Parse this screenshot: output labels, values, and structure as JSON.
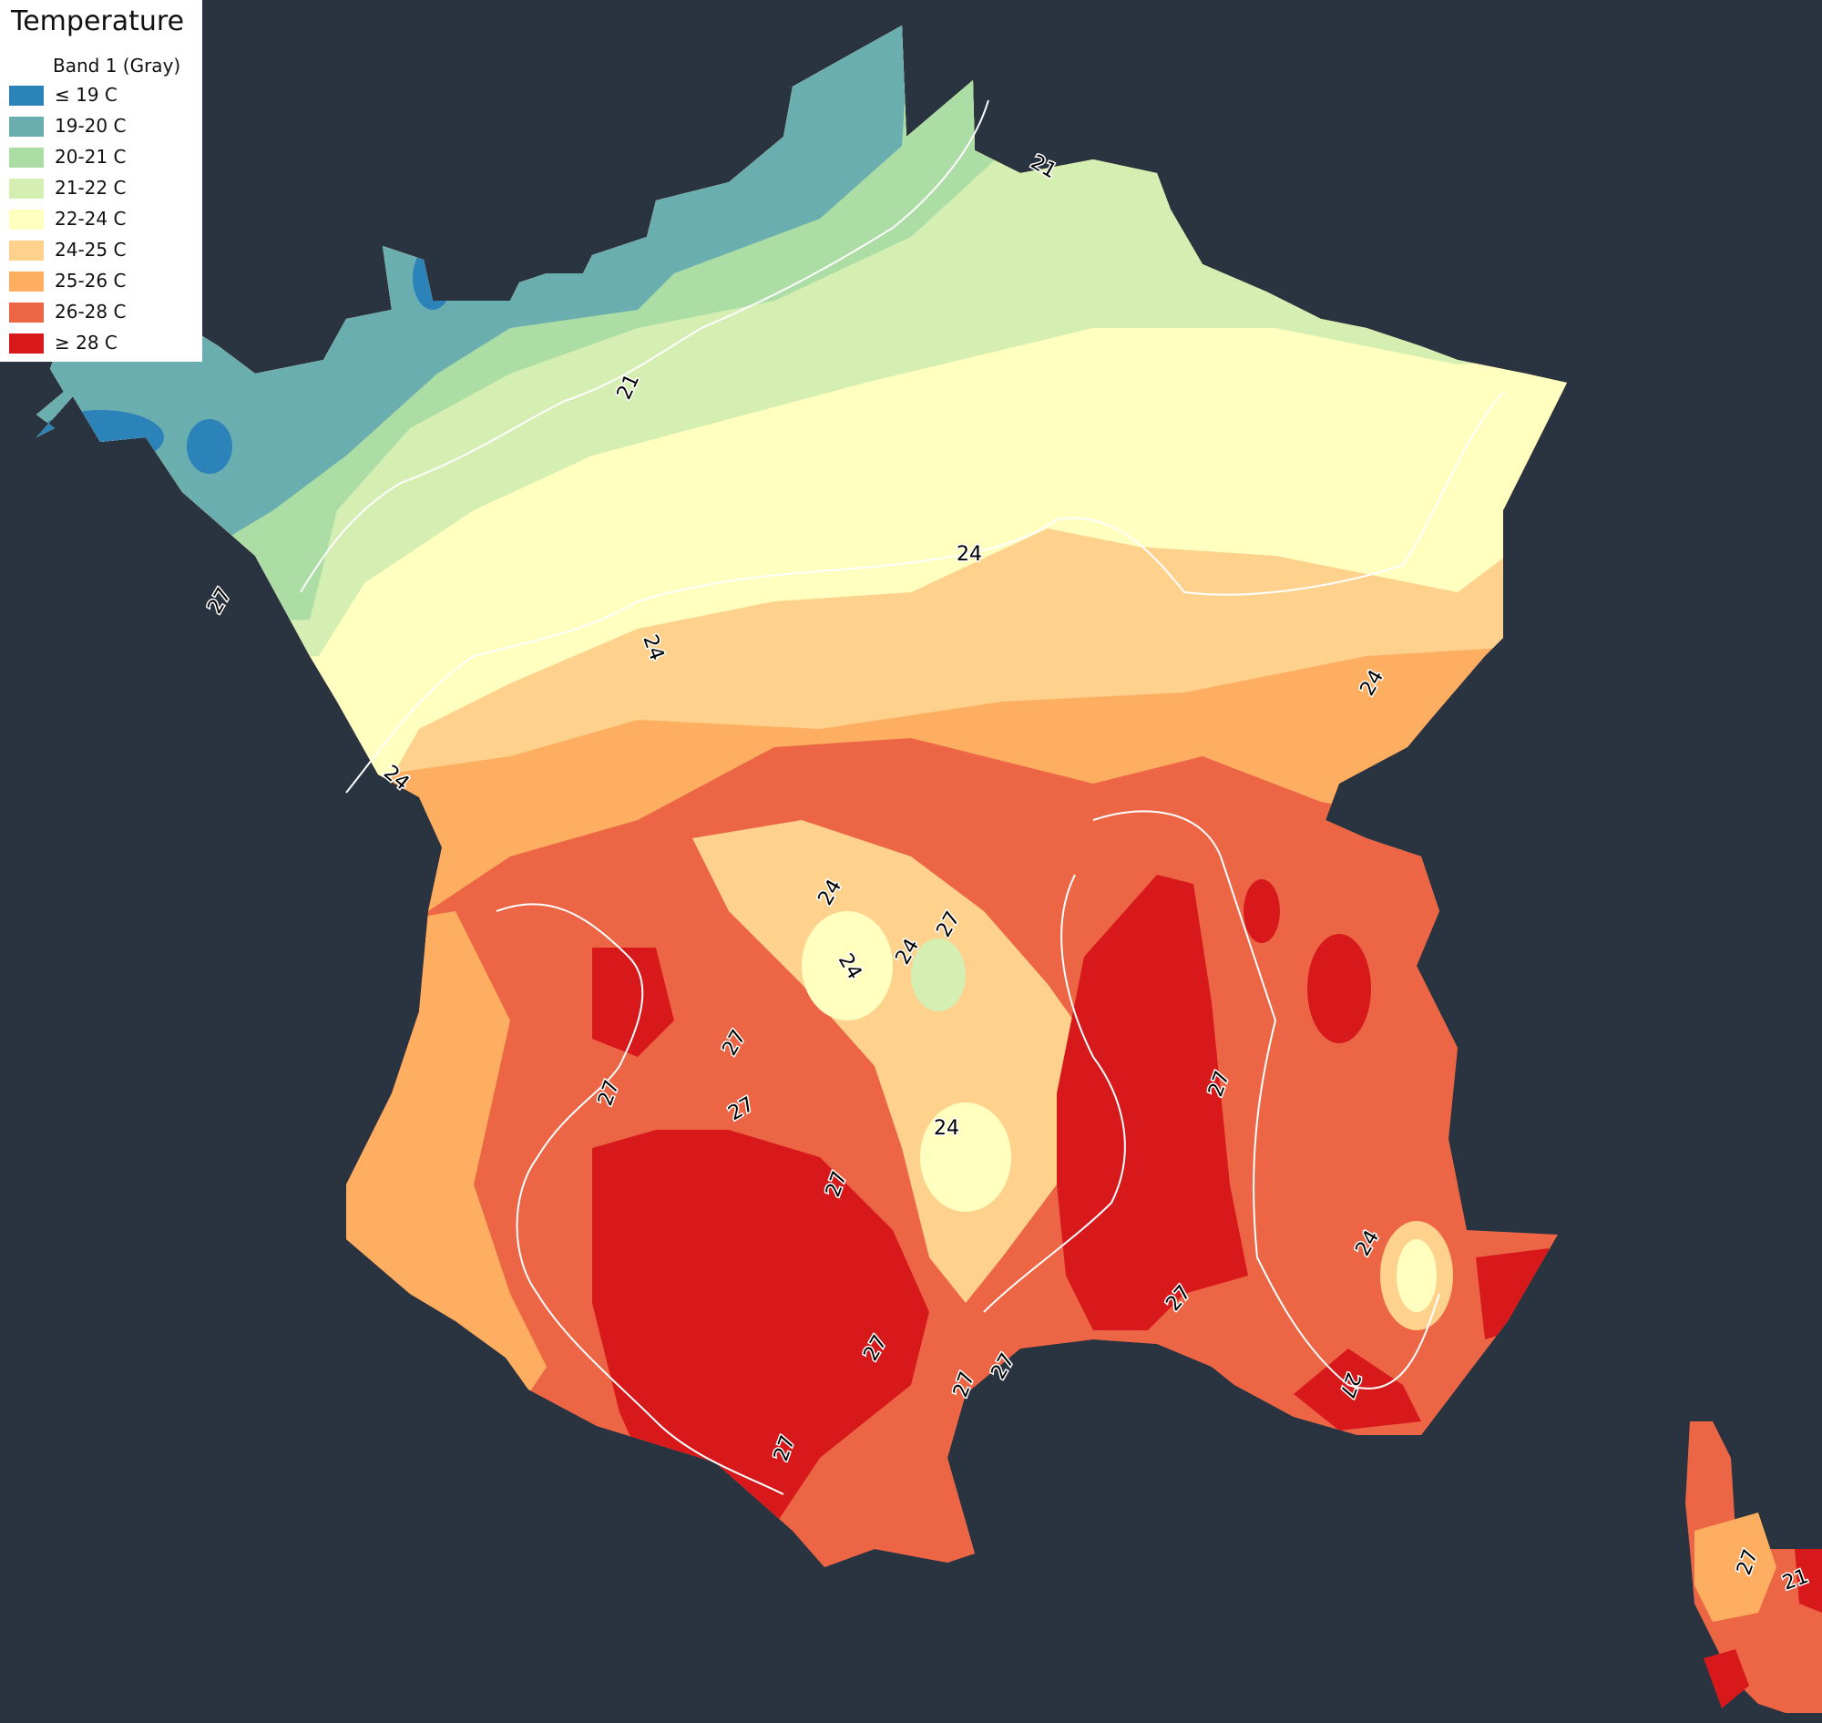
{
  "legend": {
    "title": "Temperature",
    "subtitle": "Band 1 (Gray)",
    "items": [
      {
        "label": "≤ 19 C",
        "color": "#2b83ba"
      },
      {
        "label": "19-20 C",
        "color": "#6baeb0"
      },
      {
        "label": "20-21 C",
        "color": "#abdda4"
      },
      {
        "label": "21-22 C",
        "color": "#d5eeb1"
      },
      {
        "label": "22-24 C",
        "color": "#ffffbf"
      },
      {
        "label": "24-25 C",
        "color": "#fed28d"
      },
      {
        "label": "25-26 C",
        "color": "#fdae61"
      },
      {
        "label": "26-28 C",
        "color": "#ec6646"
      },
      {
        "label": "≥ 28 C",
        "color": "#d7191c"
      }
    ]
  },
  "map": {
    "background_color": "#2a3340",
    "contour_color": "#ffffff",
    "contour_labels": [
      "21",
      "21",
      "27",
      "21",
      "24",
      "24",
      "24",
      "24",
      "24",
      "24",
      "24",
      "24",
      "27",
      "27",
      "27",
      "27",
      "27",
      "27",
      "27",
      "27",
      "27",
      "27",
      "24",
      "27",
      "27",
      "27"
    ]
  }
}
